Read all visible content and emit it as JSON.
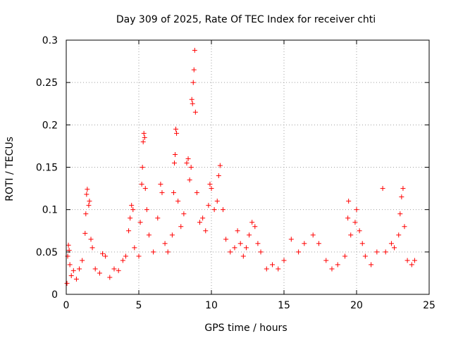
{
  "chart_data": {
    "type": "scatter",
    "title": "Day 309 of 2025, Rate Of TEC Index for receiver chti",
    "xlabel": "GPS time / hours",
    "ylabel": "ROTI / TECUs",
    "xlim": [
      0,
      25
    ],
    "ylim": [
      0,
      0.3
    ],
    "x_ticks": [
      0,
      5,
      10,
      15,
      20,
      25
    ],
    "x_tick_labels": [
      "0",
      "5",
      "10",
      "15",
      "20",
      "25"
    ],
    "y_ticks": [
      0,
      0.05,
      0.1,
      0.15,
      0.2,
      0.25,
      0.3
    ],
    "y_tick_labels": [
      "0",
      "0.05",
      "0.1",
      "0.15",
      "0.2",
      "0.25",
      "0.3"
    ],
    "grid": true,
    "marker": "+",
    "marker_color": "#ff0000",
    "series": [
      {
        "name": "ROTI",
        "points": [
          [
            0.05,
            0.013
          ],
          [
            0.1,
            0.045
          ],
          [
            0.15,
            0.058
          ],
          [
            0.2,
            0.052
          ],
          [
            0.25,
            0.035
          ],
          [
            0.35,
            0.022
          ],
          [
            0.5,
            0.028
          ],
          [
            0.7,
            0.018
          ],
          [
            0.9,
            0.03
          ],
          [
            1.1,
            0.04
          ],
          [
            1.3,
            0.072
          ],
          [
            1.35,
            0.095
          ],
          [
            1.4,
            0.118
          ],
          [
            1.45,
            0.124
          ],
          [
            1.55,
            0.105
          ],
          [
            1.6,
            0.11
          ],
          [
            1.7,
            0.065
          ],
          [
            1.8,
            0.055
          ],
          [
            2.0,
            0.03
          ],
          [
            2.3,
            0.025
          ],
          [
            2.5,
            0.048
          ],
          [
            2.7,
            0.045
          ],
          [
            3.0,
            0.02
          ],
          [
            3.3,
            0.03
          ],
          [
            3.6,
            0.028
          ],
          [
            3.9,
            0.04
          ],
          [
            4.1,
            0.045
          ],
          [
            4.3,
            0.075
          ],
          [
            4.4,
            0.09
          ],
          [
            4.5,
            0.105
          ],
          [
            4.6,
            0.1
          ],
          [
            4.7,
            0.055
          ],
          [
            5.0,
            0.045
          ],
          [
            5.1,
            0.085
          ],
          [
            5.2,
            0.13
          ],
          [
            5.25,
            0.15
          ],
          [
            5.3,
            0.18
          ],
          [
            5.35,
            0.19
          ],
          [
            5.4,
            0.185
          ],
          [
            5.45,
            0.125
          ],
          [
            5.55,
            0.1
          ],
          [
            5.7,
            0.07
          ],
          [
            6.0,
            0.05
          ],
          [
            6.3,
            0.09
          ],
          [
            6.5,
            0.13
          ],
          [
            6.6,
            0.12
          ],
          [
            6.8,
            0.06
          ],
          [
            7.0,
            0.05
          ],
          [
            7.3,
            0.07
          ],
          [
            7.4,
            0.12
          ],
          [
            7.45,
            0.155
          ],
          [
            7.5,
            0.165
          ],
          [
            7.55,
            0.195
          ],
          [
            7.6,
            0.19
          ],
          [
            7.7,
            0.11
          ],
          [
            7.9,
            0.08
          ],
          [
            8.1,
            0.095
          ],
          [
            8.3,
            0.155
          ],
          [
            8.4,
            0.16
          ],
          [
            8.5,
            0.135
          ],
          [
            8.6,
            0.15
          ],
          [
            8.65,
            0.23
          ],
          [
            8.7,
            0.225
          ],
          [
            8.75,
            0.25
          ],
          [
            8.8,
            0.265
          ],
          [
            8.85,
            0.288
          ],
          [
            8.9,
            0.215
          ],
          [
            9.0,
            0.12
          ],
          [
            9.2,
            0.085
          ],
          [
            9.4,
            0.09
          ],
          [
            9.6,
            0.075
          ],
          [
            9.8,
            0.105
          ],
          [
            9.9,
            0.13
          ],
          [
            10.0,
            0.125
          ],
          [
            10.2,
            0.1
          ],
          [
            10.4,
            0.11
          ],
          [
            10.5,
            0.14
          ],
          [
            10.6,
            0.152
          ],
          [
            10.8,
            0.1
          ],
          [
            11.0,
            0.065
          ],
          [
            11.3,
            0.05
          ],
          [
            11.6,
            0.055
          ],
          [
            11.8,
            0.075
          ],
          [
            12.0,
            0.06
          ],
          [
            12.2,
            0.045
          ],
          [
            12.4,
            0.055
          ],
          [
            12.6,
            0.07
          ],
          [
            12.8,
            0.085
          ],
          [
            13.0,
            0.08
          ],
          [
            13.2,
            0.06
          ],
          [
            13.4,
            0.05
          ],
          [
            13.8,
            0.03
          ],
          [
            14.2,
            0.035
          ],
          [
            14.6,
            0.03
          ],
          [
            15.0,
            0.04
          ],
          [
            15.5,
            0.065
          ],
          [
            16.0,
            0.05
          ],
          [
            16.4,
            0.06
          ],
          [
            17.0,
            0.07
          ],
          [
            17.4,
            0.06
          ],
          [
            17.9,
            0.04
          ],
          [
            18.3,
            0.03
          ],
          [
            18.7,
            0.035
          ],
          [
            19.2,
            0.045
          ],
          [
            19.4,
            0.09
          ],
          [
            19.45,
            0.11
          ],
          [
            19.6,
            0.07
          ],
          [
            19.9,
            0.085
          ],
          [
            20.0,
            0.1
          ],
          [
            20.2,
            0.075
          ],
          [
            20.4,
            0.06
          ],
          [
            20.6,
            0.045
          ],
          [
            21.0,
            0.035
          ],
          [
            21.4,
            0.05
          ],
          [
            21.8,
            0.125
          ],
          [
            22.0,
            0.05
          ],
          [
            22.4,
            0.06
          ],
          [
            22.6,
            0.055
          ],
          [
            22.9,
            0.07
          ],
          [
            23.0,
            0.095
          ],
          [
            23.1,
            0.115
          ],
          [
            23.2,
            0.125
          ],
          [
            23.3,
            0.08
          ],
          [
            23.5,
            0.04
          ],
          [
            23.8,
            0.035
          ],
          [
            24.0,
            0.04
          ]
        ]
      }
    ]
  }
}
